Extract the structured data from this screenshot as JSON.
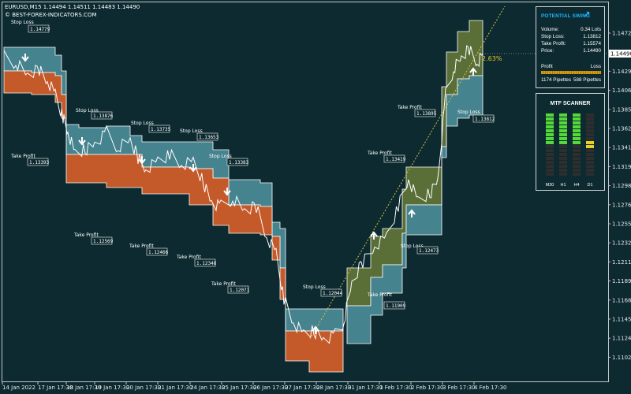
{
  "window": {
    "symbol_line": "EURUSD,M15  1.14494 1.14511 1.14483 1.14490",
    "watermark": "© BEST-FOREX-INDICATORS.COM",
    "current_price": "1.14490"
  },
  "overlay": {
    "percent_change": "2.63%"
  },
  "colors": {
    "background": "#0c2a30",
    "bull_zone": "#5a6e38",
    "bear_zone": "#c4592a",
    "range_zone": "#45838e",
    "price_line": "#ffffff",
    "trend_line": "#d8c23a",
    "swing_title": "#1fb4ff"
  },
  "price_axis": {
    "ticks": [
      "1.14720",
      "1.14505",
      "1.14290",
      "1.14065",
      "1.13850",
      "1.13625",
      "1.13410",
      "1.13195",
      "1.12980",
      "1.12765",
      "1.12550",
      "1.12325",
      "1.12110",
      "1.11895",
      "1.11680",
      "1.11455",
      "1.11240",
      "1.11020"
    ]
  },
  "time_axis": {
    "ticks": [
      "14 Jan 2022",
      "17 Jan 17:30",
      "18 Jan 17:30",
      "19 Jan 17:30",
      "20 Jan 17:30",
      "21 Jan 17:30",
      "24 Jan 17:30",
      "25 Jan 17:30",
      "26 Jan 17:30",
      "27 Jan 17:30",
      "28 Jan 17:30",
      "31 Jan 17:30",
      "1 Feb 17:30",
      "2 Feb 17:30",
      "3 Feb 17:30",
      "4 Feb 17:30"
    ]
  },
  "labels": [
    {
      "tag": "Stop Loss",
      "value": "1.14779"
    },
    {
      "tag": "Stop Loss",
      "value": "1.13876"
    },
    {
      "tag": "Stop Loss",
      "value": "1.13735"
    },
    {
      "tag": "Stop Loss",
      "value": "1.13653"
    },
    {
      "tag": "Stop Loss",
      "value": "1.13383"
    },
    {
      "tag": "Take Profit",
      "value": "1.13393"
    },
    {
      "tag": "Take Profit",
      "value": "1.12569"
    },
    {
      "tag": "Take Profit",
      "value": "1.12466"
    },
    {
      "tag": "Take Profit",
      "value": "1.12348"
    },
    {
      "tag": "Take Profit",
      "value": "1.12071"
    },
    {
      "tag": "Stop Loss",
      "value": "1.12044"
    },
    {
      "tag": "Take Profit",
      "value": "1.11909"
    },
    {
      "tag": "Stop Loss",
      "value": "1.12473"
    },
    {
      "tag": "Take Profit",
      "value": "1.13419"
    },
    {
      "tag": "Take Profit",
      "value": "1.13895"
    },
    {
      "tag": "Stop Loss",
      "value": "1.13812"
    }
  ],
  "swing_panel": {
    "title": "POTENTIAL SWING",
    "arrow_icon": "arrow-up-right-icon",
    "rows": [
      {
        "label": "Volume:",
        "value": "0.34 Lots"
      },
      {
        "label": "Stop Loss:",
        "value": "1.13812"
      },
      {
        "label": "Take Profit:",
        "value": "1.15574"
      },
      {
        "label": "Price:",
        "value": "1.14490"
      }
    ],
    "profit_label": "Profit",
    "loss_label": "Loss",
    "profit_pips": "1174 Pipettes",
    "loss_pips": "588 Pipettes"
  },
  "mtf_panel": {
    "title": "MTF SCANNER",
    "timeframes": [
      {
        "label": "M30",
        "level": 0.5,
        "color": "#54d83a"
      },
      {
        "label": "H1",
        "level": 0.5,
        "color": "#54d83a"
      },
      {
        "label": "H4",
        "level": 0.5,
        "color": "#54d83a"
      },
      {
        "label": "D1",
        "level": 0.2,
        "color": "#e8d020"
      }
    ]
  }
}
